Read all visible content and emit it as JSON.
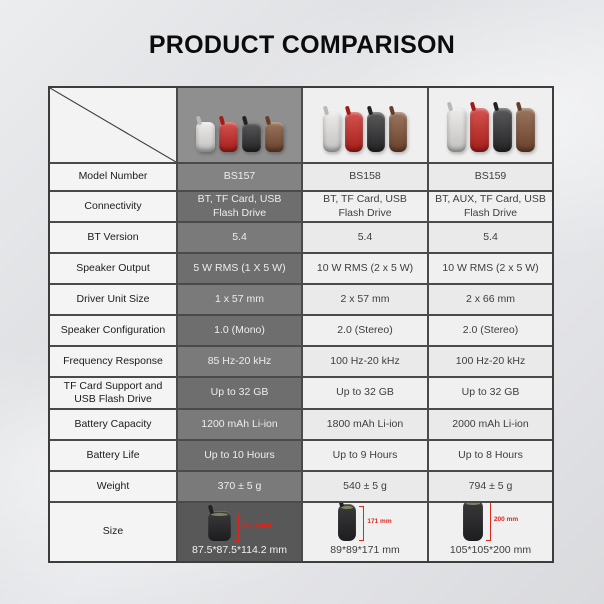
{
  "title": "PRODUCT COMPARISON",
  "accent_red": "#e0251b",
  "products": [
    {
      "model": "BS157",
      "shape": "squat",
      "speaker_colors": [
        "#e7e6e4",
        "#c7231f",
        "#2b2b2d",
        "#7d4e32"
      ]
    },
    {
      "model": "BS158",
      "shape": "tall",
      "speaker_colors": [
        "#e7e6e4",
        "#c7231f",
        "#2b2b2d",
        "#7d4e32"
      ]
    },
    {
      "model": "BS159",
      "shape": "taller",
      "speaker_colors": [
        "#e7e6e4",
        "#c7231f",
        "#2b2b2d",
        "#7d4e32"
      ]
    }
  ],
  "rows": [
    {
      "label": "Model Number",
      "values": [
        "BS157",
        "BS158",
        "BS159"
      ]
    },
    {
      "label": "Connectivity",
      "values": [
        "BT, TF Card, USB Flash Drive",
        "BT, TF Card, USB Flash Drive",
        "BT, AUX, TF Card, USB Flash Drive"
      ]
    },
    {
      "label": "BT Version",
      "values": [
        "5.4",
        "5.4",
        "5.4"
      ]
    },
    {
      "label": "Speaker Output",
      "values": [
        "5 W RMS (1 X 5 W)",
        "10 W RMS (2 x 5 W)",
        "10 W RMS (2 x 5 W)"
      ]
    },
    {
      "label": "Driver Unit Size",
      "values": [
        "1 x 57 mm",
        "2 x 57 mm",
        "2 x 66 mm"
      ]
    },
    {
      "label": "Speaker Configuration",
      "values": [
        "1.0 (Mono)",
        "2.0 (Stereo)",
        "2.0 (Stereo)"
      ]
    },
    {
      "label": "Frequency Response",
      "values": [
        "85 Hz-20 kHz",
        "100 Hz-20 kHz",
        "100 Hz-20 kHz"
      ]
    },
    {
      "label": "TF Card Support and USB Flash Drive",
      "values": [
        "Up to 32 GB",
        "Up to 32 GB",
        "Up to 32 GB"
      ]
    },
    {
      "label": "Battery Capacity",
      "values": [
        "1200 mAh Li-ion",
        "1800 mAh Li-ion",
        "2000 mAh Li-ion"
      ]
    },
    {
      "label": "Battery Life",
      "values": [
        "Up to 10 Hours",
        "Up to 9 Hours",
        "Up to 8 Hours"
      ]
    },
    {
      "label": "Weight",
      "values": [
        "370 ± 5 g",
        "540 ± 5 g",
        "794 ± 5 g"
      ]
    },
    {
      "label": "Size",
      "values": [
        "87.5*87.5*114.2 mm",
        "89*89*171 mm",
        "105*105*200 mm"
      ],
      "height_labels": [
        "114.2 mm",
        "171 mm",
        "200 mm"
      ]
    }
  ]
}
